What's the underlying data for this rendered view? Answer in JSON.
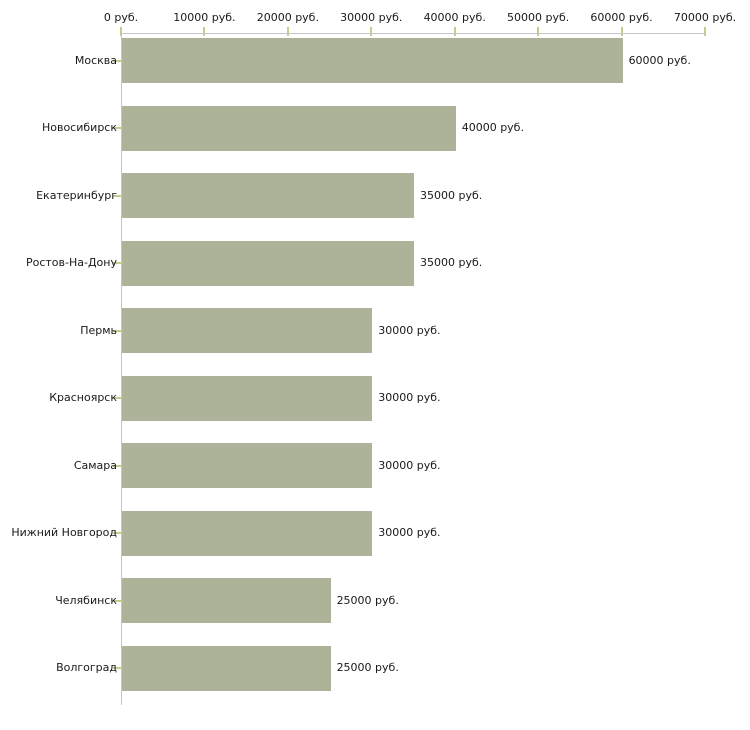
{
  "chart_data": {
    "type": "bar",
    "orientation": "horizontal",
    "categories": [
      "Москва",
      "Новосибирск",
      "Екатеринбург",
      "Ростов-На-Дону",
      "Пермь",
      "Красноярск",
      "Самара",
      "Нижний Новгород",
      "Челябинск",
      "Волгоград"
    ],
    "values": [
      60000,
      40000,
      35000,
      35000,
      30000,
      30000,
      30000,
      30000,
      25000,
      25000
    ],
    "bar_value_labels": [
      "60000 руб.",
      "40000 руб.",
      "35000 руб.",
      "35000 руб.",
      "30000 руб.",
      "30000 руб.",
      "30000 руб.",
      "30000 руб.",
      "25000 руб.",
      "25000 руб."
    ],
    "unit": "руб.",
    "x_axis": {
      "position": "top",
      "min": 0,
      "max": 70000,
      "step": 10000,
      "tick_labels": [
        "0 руб.",
        "10000 руб.",
        "20000 руб.",
        "30000 руб.",
        "40000 руб.",
        "50000 руб.",
        "60000 руб.",
        "70000 руб."
      ]
    },
    "grid": false,
    "legend": false,
    "colors": {
      "bar_fill": "#adb399",
      "tick_mark": "#c6cb8e",
      "axis_line": "#c6c6c6",
      "text": "#1a1a1a",
      "background": "#ffffff"
    }
  }
}
